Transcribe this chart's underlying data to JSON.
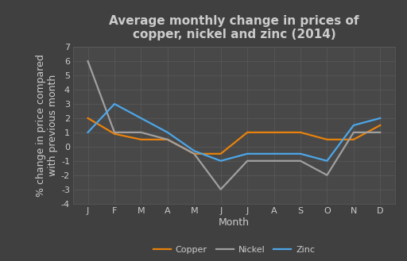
{
  "title": "Average monthly change in prices of\ncopper, nickel and zinc (2014)",
  "xlabel": "Month",
  "ylabel": "% change in price compared\nwith previous month",
  "months": [
    "J",
    "F",
    "M",
    "A",
    "M",
    "J",
    "J",
    "A",
    "S",
    "O",
    "N",
    "D"
  ],
  "copper": [
    2.0,
    0.9,
    0.5,
    0.5,
    -0.5,
    -0.5,
    1.0,
    1.0,
    1.0,
    0.5,
    0.5,
    1.5
  ],
  "nickel": [
    6.0,
    1.0,
    1.0,
    0.5,
    -0.5,
    -3.0,
    -1.0,
    -1.0,
    -1.0,
    -2.0,
    1.0,
    1.0
  ],
  "zinc": [
    1.0,
    3.0,
    2.0,
    1.0,
    -0.3,
    -1.0,
    -0.5,
    -0.5,
    -0.5,
    -1.0,
    1.5,
    2.0
  ],
  "copper_color": "#e8820c",
  "nickel_color": "#a0a0a0",
  "zinc_color": "#4da6e8",
  "background_color": "#404040",
  "plot_background_color": "#484848",
  "grid_color": "#5c5c5c",
  "text_color": "#cccccc",
  "ylim": [
    -4,
    7
  ],
  "yticks": [
    -4,
    -3,
    -2,
    -1,
    0,
    1,
    2,
    3,
    4,
    5,
    6,
    7
  ],
  "title_fontsize": 11,
  "axis_label_fontsize": 9,
  "tick_fontsize": 8,
  "legend_fontsize": 8,
  "linewidth": 1.6
}
